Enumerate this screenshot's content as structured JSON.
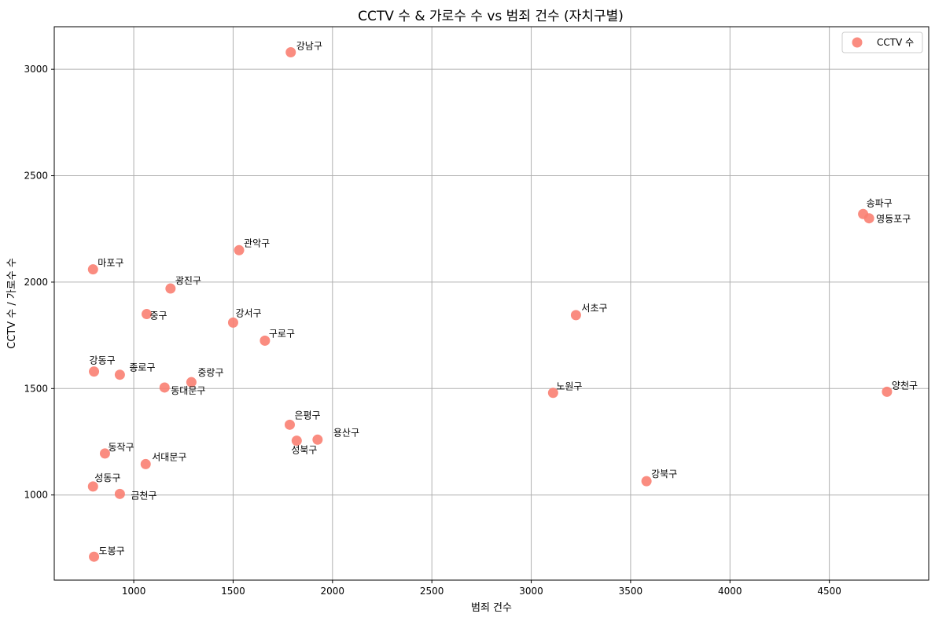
{
  "chart_data": {
    "type": "scatter",
    "title": "CCTV 수 & 가로수 수 vs 범죄 건수 (자치구별)",
    "xlabel": "범죄 건수",
    "ylabel": "CCTV 수 / 가로수 수",
    "xlim": [
      600,
      5000
    ],
    "ylim": [
      600,
      3200
    ],
    "xticks": [
      1000,
      1500,
      2000,
      2500,
      3000,
      3500,
      4000,
      4500
    ],
    "yticks": [
      1000,
      1500,
      2000,
      2500,
      3000
    ],
    "grid": true,
    "legend_position": "top-right",
    "marker_color": "#fa8072",
    "series": [
      {
        "name": "CCTV 수",
        "points": [
          {
            "label": "강남구",
            "x": 1790,
            "y": 3080
          },
          {
            "label": "송파구",
            "x": 4670,
            "y": 2320
          },
          {
            "label": "영등포구",
            "x": 4700,
            "y": 2300
          },
          {
            "label": "관악구",
            "x": 1530,
            "y": 2150
          },
          {
            "label": "마포구",
            "x": 795,
            "y": 2060
          },
          {
            "label": "광진구",
            "x": 1185,
            "y": 1970
          },
          {
            "label": "중구",
            "x": 1065,
            "y": 1850
          },
          {
            "label": "서초구",
            "x": 3225,
            "y": 1845
          },
          {
            "label": "강서구",
            "x": 1500,
            "y": 1810
          },
          {
            "label": "구로구",
            "x": 1660,
            "y": 1725
          },
          {
            "label": "강동구",
            "x": 800,
            "y": 1580
          },
          {
            "label": "종로구",
            "x": 930,
            "y": 1565
          },
          {
            "label": "중랑구",
            "x": 1290,
            "y": 1530
          },
          {
            "label": "동대문구",
            "x": 1155,
            "y": 1505
          },
          {
            "label": "양천구",
            "x": 4790,
            "y": 1485
          },
          {
            "label": "노원구",
            "x": 3110,
            "y": 1480
          },
          {
            "label": "은평구",
            "x": 1785,
            "y": 1330
          },
          {
            "label": "용산구",
            "x": 1925,
            "y": 1260
          },
          {
            "label": "성북구",
            "x": 1820,
            "y": 1255
          },
          {
            "label": "동작구",
            "x": 855,
            "y": 1195
          },
          {
            "label": "서대문구",
            "x": 1060,
            "y": 1145
          },
          {
            "label": "강북구",
            "x": 3580,
            "y": 1065
          },
          {
            "label": "성동구",
            "x": 795,
            "y": 1040
          },
          {
            "label": "금천구",
            "x": 930,
            "y": 1005
          },
          {
            "label": "도봉구",
            "x": 800,
            "y": 710
          }
        ]
      }
    ]
  }
}
